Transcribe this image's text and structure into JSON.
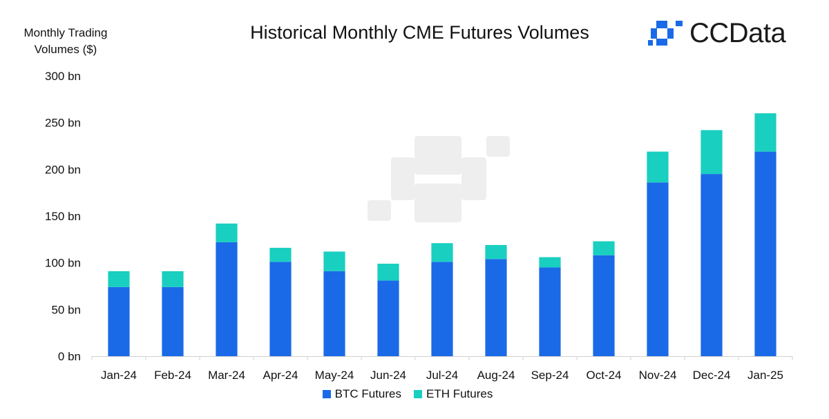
{
  "chart_data": {
    "type": "bar",
    "stacked": true,
    "title": "Historical Monthly CME Futures Volumes",
    "ylabel": "Monthly Trading Volumes ($)",
    "categories": [
      "Jan-24",
      "Feb-24",
      "Mar-24",
      "Apr-24",
      "May-24",
      "Jun-24",
      "Jul-24",
      "Aug-24",
      "Sep-24",
      "Oct-24",
      "Nov-24",
      "Dec-24",
      "Jan-25"
    ],
    "series": [
      {
        "name": "BTC Futures",
        "color": "#1a6ae8",
        "values": [
          74,
          74,
          122,
          101,
          91,
          81,
          101,
          104,
          95,
          108,
          186,
          195,
          219
        ]
      },
      {
        "name": "ETH Futures",
        "color": "#19cfc0",
        "values": [
          17,
          17,
          20,
          15,
          21,
          18,
          20,
          15,
          11,
          15,
          33,
          47,
          41
        ]
      }
    ],
    "ylim": [
      0,
      300
    ],
    "yticks": [
      0,
      50,
      100,
      150,
      200,
      250,
      300
    ],
    "ytick_labels": [
      "0 bn",
      "50 bn",
      "100 bn",
      "150 bn",
      "200 bn",
      "250 bn",
      "300 bn"
    ],
    "grid": false,
    "legend_position": "bottom"
  },
  "ylabel_lines": [
    "Monthly Trading",
    "Volumes ($)"
  ],
  "brand": {
    "name": "CCData",
    "color": "#1a6ae8"
  }
}
